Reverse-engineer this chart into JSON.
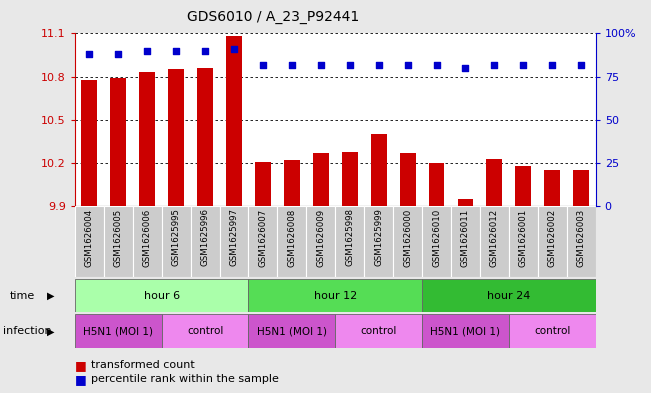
{
  "title": "GDS6010 / A_23_P92441",
  "samples": [
    "GSM1626004",
    "GSM1626005",
    "GSM1626006",
    "GSM1625995",
    "GSM1625996",
    "GSM1625997",
    "GSM1626007",
    "GSM1626008",
    "GSM1626009",
    "GSM1625998",
    "GSM1625999",
    "GSM1626000",
    "GSM1626010",
    "GSM1626011",
    "GSM1626012",
    "GSM1626001",
    "GSM1626002",
    "GSM1626003"
  ],
  "bar_values": [
    10.78,
    10.79,
    10.83,
    10.85,
    10.86,
    11.08,
    10.21,
    10.22,
    10.27,
    10.28,
    10.4,
    10.27,
    10.2,
    9.95,
    10.23,
    10.18,
    10.15,
    10.15
  ],
  "percentile_values": [
    88,
    88,
    90,
    90,
    90,
    91,
    82,
    82,
    82,
    82,
    82,
    82,
    82,
    80,
    82,
    82,
    82,
    82
  ],
  "bar_color": "#cc0000",
  "dot_color": "#0000cc",
  "ymin": 9.9,
  "ymax": 11.1,
  "yticks": [
    9.9,
    10.2,
    10.5,
    10.8,
    11.1
  ],
  "ytick_labels": [
    "9.9",
    "10.2",
    "10.5",
    "10.8",
    "11.1"
  ],
  "y2ticks": [
    0,
    25,
    50,
    75,
    100
  ],
  "y2tick_labels": [
    "0",
    "25",
    "50",
    "75",
    "100%"
  ],
  "groups": [
    {
      "label": "hour 6",
      "start": 0,
      "end": 6,
      "color": "#aaffaa"
    },
    {
      "label": "hour 12",
      "start": 6,
      "end": 12,
      "color": "#55dd55"
    },
    {
      "label": "hour 24",
      "start": 12,
      "end": 18,
      "color": "#33bb33"
    }
  ],
  "infections": [
    {
      "label": "H5N1 (MOI 1)",
      "start": 0,
      "end": 3,
      "color": "#cc55cc"
    },
    {
      "label": "control",
      "start": 3,
      "end": 6,
      "color": "#ee88ee"
    },
    {
      "label": "H5N1 (MOI 1)",
      "start": 6,
      "end": 9,
      "color": "#cc55cc"
    },
    {
      "label": "control",
      "start": 9,
      "end": 12,
      "color": "#ee88ee"
    },
    {
      "label": "H5N1 (MOI 1)",
      "start": 12,
      "end": 15,
      "color": "#cc55cc"
    },
    {
      "label": "control",
      "start": 15,
      "end": 18,
      "color": "#ee88ee"
    }
  ],
  "time_label": "time",
  "infection_label": "infection",
  "legend_bar": "transformed count",
  "legend_dot": "percentile rank within the sample",
  "background_color": "#e8e8e8",
  "plot_bg": "#ffffff",
  "label_bg": "#cccccc"
}
